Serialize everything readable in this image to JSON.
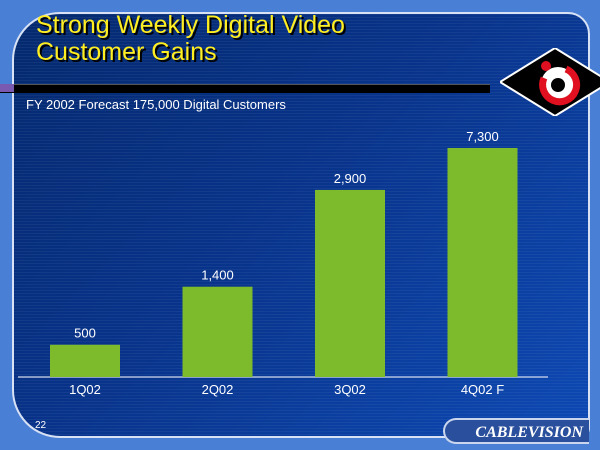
{
  "slide": {
    "title_line1": "Strong Weekly Digital Video",
    "title_line2": "Customer Gains",
    "subtitle": "FY 2002 Forecast 175,000 Digital Customers",
    "page_number": "22",
    "brand": "CABLEVISION"
  },
  "colors": {
    "bar": "#7dbb2c",
    "accent_title": "#ffee22"
  },
  "chart_data": {
    "type": "bar",
    "title": "FY 2002 Forecast 175,000 Digital Customers",
    "categories": [
      "1Q02",
      "2Q02",
      "3Q02",
      "4Q02 F"
    ],
    "values": [
      500,
      1400,
      2900,
      7300
    ],
    "data_labels": [
      "500",
      "1,400",
      "2,900",
      "7,300"
    ],
    "xlabel": "",
    "ylabel": "",
    "ylim": [
      0,
      3550
    ],
    "axis_note": "last bar truncated (broken scale)",
    "grid": false,
    "legend": "none"
  }
}
